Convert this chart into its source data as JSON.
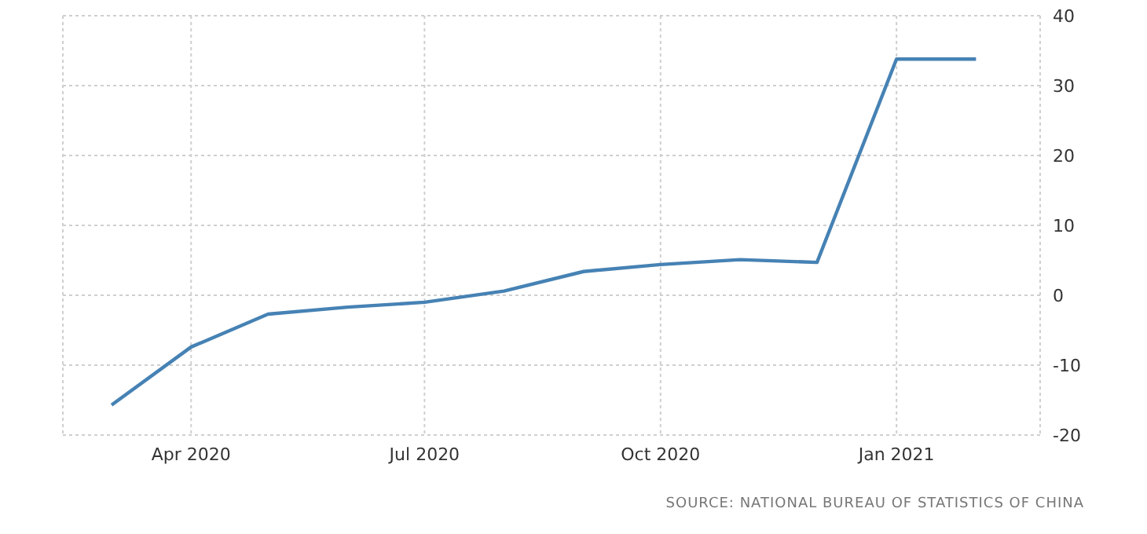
{
  "chart_data": {
    "type": "line",
    "x": [
      "2020-03",
      "2020-04",
      "2020-05",
      "2020-06",
      "2020-07",
      "2020-08",
      "2020-09",
      "2020-10",
      "2020-11",
      "2020-12",
      "2021-01",
      "2021-02"
    ],
    "series": [
      {
        "color": "#4682b4",
        "values": [
          -15.7,
          -7.4,
          -2.7,
          -1.7,
          -1.0,
          0.6,
          3.4,
          4.4,
          5.1,
          4.7,
          33.8,
          33.8
        ]
      }
    ],
    "xlim": [
      "2020-02-11",
      "2021-02-26"
    ],
    "xticks": [
      {
        "value": "2020-04",
        "label": "Apr 2020"
      },
      {
        "value": "2020-07",
        "label": "Jul 2020"
      },
      {
        "value": "2020-10",
        "label": "Oct 2020"
      },
      {
        "value": "2021-01",
        "label": "Jan 2021"
      }
    ],
    "ylim": [
      -20,
      40
    ],
    "yticks": [
      -20,
      -10,
      0,
      10,
      20,
      30,
      40
    ],
    "grid": true,
    "legend": false,
    "marker": "none",
    "line_style": "solid",
    "annotations": [
      "SOURCE: NATIONAL BUREAU OF STATISTICS OF CHINA"
    ]
  }
}
